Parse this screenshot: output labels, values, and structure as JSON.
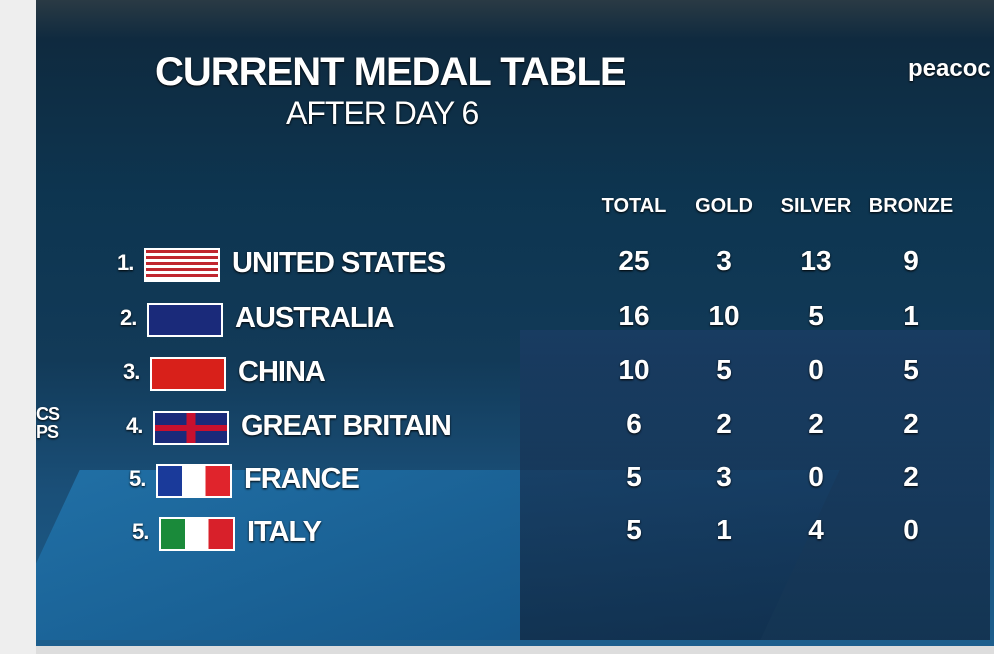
{
  "header": {
    "title": "CURRENT MEDAL TABLE",
    "subtitle": "AFTER DAY 6",
    "brand": "peacoc"
  },
  "edge_text": [
    "CS",
    "PS"
  ],
  "table": {
    "columns": [
      "TOTAL",
      "GOLD",
      "SILVER",
      "BRONZE"
    ],
    "rows": [
      {
        "rank": "1.",
        "country": "UNITED STATES",
        "total": 25,
        "gold": 3,
        "silver": 13,
        "bronze": 9
      },
      {
        "rank": "2.",
        "country": "AUSTRALIA",
        "total": 16,
        "gold": 10,
        "silver": 5,
        "bronze": 1
      },
      {
        "rank": "3.",
        "country": "CHINA",
        "total": 10,
        "gold": 5,
        "silver": 0,
        "bronze": 5
      },
      {
        "rank": "4.",
        "country": "GREAT BRITAIN",
        "total": 6,
        "gold": 2,
        "silver": 2,
        "bronze": 2
      },
      {
        "rank": "5.",
        "country": "FRANCE",
        "total": 5,
        "gold": 3,
        "silver": 0,
        "bronze": 2
      },
      {
        "rank": "5.",
        "country": "ITALY",
        "total": 5,
        "gold": 1,
        "silver": 4,
        "bronze": 0
      }
    ]
  }
}
